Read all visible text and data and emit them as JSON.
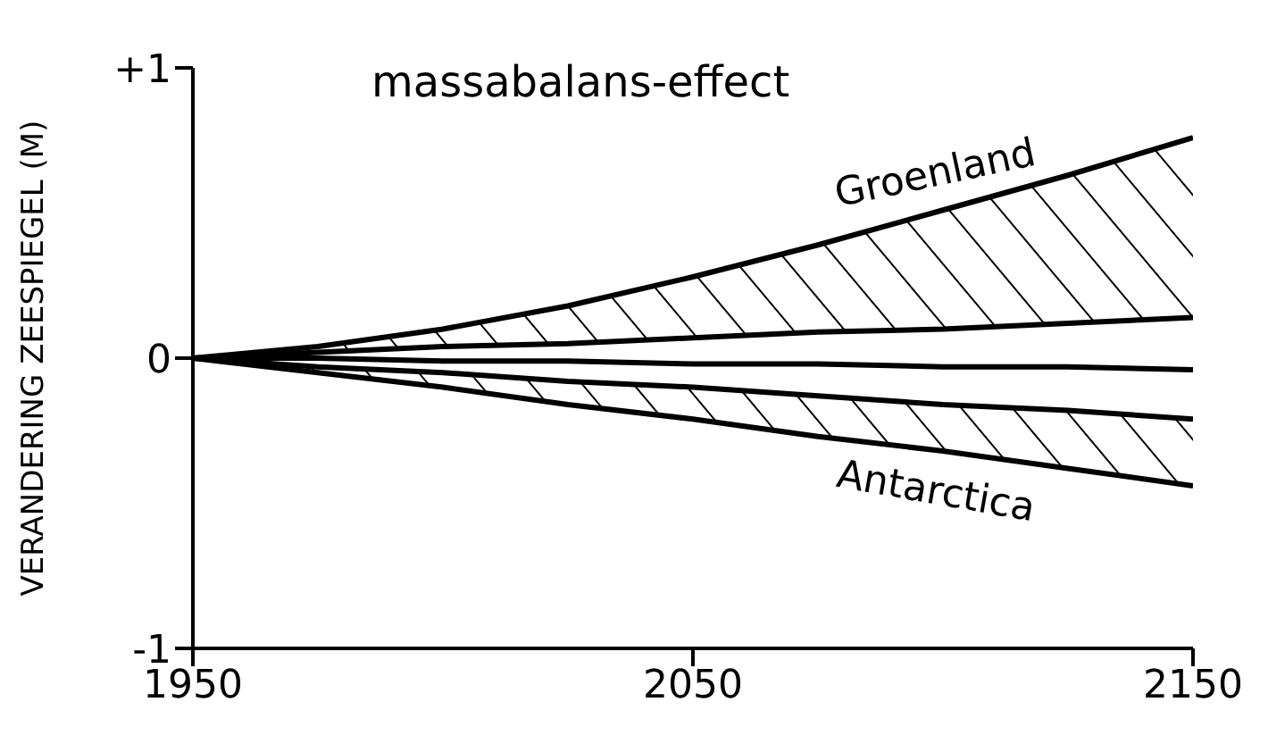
{
  "chart_data": {
    "type": "line",
    "title": "massabalans-effect",
    "ylabel": "VERANDERING  ZEESPIEGEL (M)",
    "x": [
      1950,
      1975,
      2000,
      2025,
      2050,
      2075,
      2100,
      2125,
      2150
    ],
    "series": [
      {
        "name": "Groenland",
        "color": "#000000",
        "values": [
          0,
          0.04,
          0.1,
          0.18,
          0.28,
          0.39,
          0.51,
          0.63,
          0.76
        ],
        "lower": [
          0,
          0.02,
          0.04,
          0.05,
          0.07,
          0.09,
          0.1,
          0.12,
          0.14
        ],
        "upper": [
          0,
          0.04,
          0.1,
          0.18,
          0.28,
          0.39,
          0.51,
          0.63,
          0.76
        ]
      },
      {
        "color": "#000000",
        "values": [
          0,
          0.02,
          0.04,
          0.05,
          0.07,
          0.09,
          0.1,
          0.12,
          0.14
        ]
      },
      {
        "color": "#000000",
        "values": [
          0,
          0,
          -0.01,
          -0.01,
          -0.02,
          -0.02,
          -0.03,
          -0.03,
          -0.04
        ]
      },
      {
        "color": "#000000",
        "values": [
          0,
          -0.03,
          -0.05,
          -0.08,
          -0.1,
          -0.13,
          -0.16,
          -0.18,
          -0.21
        ]
      },
      {
        "name": "Antarctica",
        "color": "#000000",
        "values": [
          0,
          -0.05,
          -0.1,
          -0.16,
          -0.21,
          -0.27,
          -0.32,
          -0.38,
          -0.44
        ],
        "lower": [
          0,
          -0.05,
          -0.1,
          -0.16,
          -0.21,
          -0.27,
          -0.32,
          -0.38,
          -0.44
        ],
        "upper": [
          0,
          -0.03,
          -0.05,
          -0.08,
          -0.1,
          -0.13,
          -0.16,
          -0.18,
          -0.21
        ]
      }
    ],
    "xlim": [
      1950,
      2150
    ],
    "xticks": [
      1950,
      2050,
      2150
    ],
    "ylim": [
      -1,
      1
    ],
    "yticks": [
      {
        "value": 1,
        "label": "+1"
      },
      0,
      {
        "value": -1,
        "label": "-1"
      }
    ],
    "grid": false,
    "legend": false,
    "marker": "none",
    "line_style": "solid"
  }
}
